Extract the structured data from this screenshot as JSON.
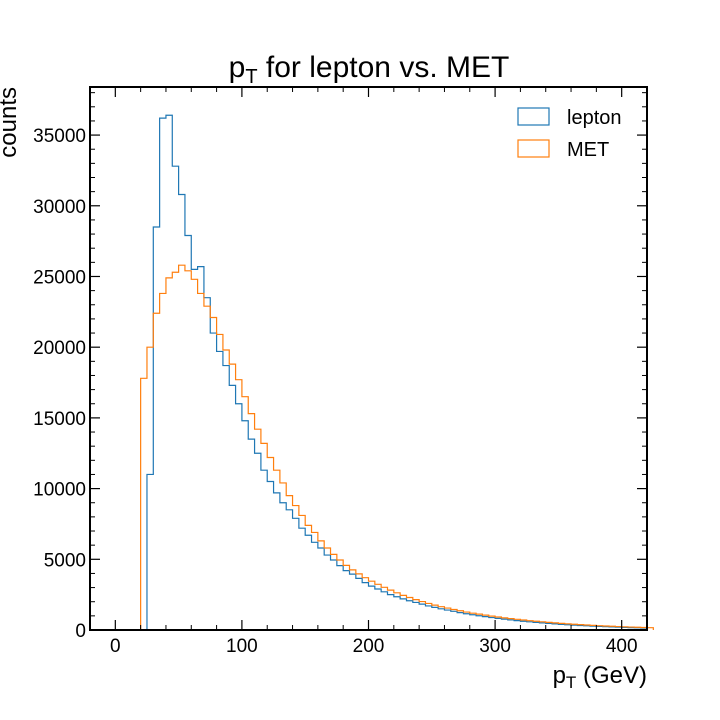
{
  "chart_data": {
    "type": "histogram",
    "title_main": "p",
    "title_sub": "T",
    "title_rest": " for lepton vs. MET",
    "xlabel_main": "p",
    "xlabel_sub": "T",
    "xlabel_rest": " (GeV)",
    "ylabel": "counts",
    "xlim": [
      -20,
      420
    ],
    "ylim": [
      0,
      38400
    ],
    "bin_start": 20,
    "bin_width": 5,
    "x_ticks": [
      0,
      100,
      200,
      300,
      400
    ],
    "x_tick_labels": [
      "0",
      "100",
      "200",
      "300",
      "400"
    ],
    "y_ticks": [
      0,
      5000,
      10000,
      15000,
      20000,
      25000,
      30000,
      35000
    ],
    "y_tick_labels": [
      "0",
      "5000",
      "10000",
      "15000",
      "20000",
      "25000",
      "30000",
      "35000"
    ],
    "legend": {
      "position": "top-right"
    },
    "series": [
      {
        "name": "lepton",
        "color": "#1f77b4",
        "values": [
          0,
          11000,
          28500,
          36200,
          36400,
          32800,
          30800,
          27900,
          25500,
          25700,
          23500,
          21000,
          19700,
          18700,
          17300,
          16000,
          14800,
          13500,
          12500,
          11300,
          10500,
          9700,
          9000,
          8500,
          7900,
          7200,
          6700,
          6200,
          5800,
          5300,
          4950,
          4550,
          4200,
          3950,
          3650,
          3350,
          3100,
          2900,
          2700,
          2500,
          2350,
          2200,
          2070,
          1950,
          1830,
          1700,
          1600,
          1500,
          1410,
          1320,
          1230,
          1150,
          1080,
          1010,
          945,
          880,
          820,
          765,
          715,
          665,
          620,
          578,
          538,
          500,
          465,
          432,
          400,
          372,
          345,
          320,
          296,
          274,
          253,
          234,
          216,
          199,
          183,
          168,
          154,
          141
        ]
      },
      {
        "name": "MET",
        "color": "#ff7f0e",
        "values": [
          17800,
          20000,
          22400,
          23800,
          24900,
          25300,
          25800,
          25400,
          24800,
          23800,
          22900,
          22100,
          20900,
          19800,
          18800,
          17700,
          16500,
          15300,
          14200,
          13200,
          12200,
          11300,
          10400,
          9500,
          8800,
          8100,
          7400,
          6900,
          6300,
          5800,
          5350,
          4950,
          4570,
          4250,
          3970,
          3700,
          3450,
          3230,
          3020,
          2820,
          2630,
          2450,
          2300,
          2150,
          2010,
          1880,
          1760,
          1650,
          1550,
          1450,
          1360,
          1270,
          1190,
          1120,
          1050,
          980,
          920,
          860,
          805,
          755,
          705,
          660,
          618,
          578,
          540,
          504,
          470,
          438,
          408,
          380,
          354,
          329,
          306,
          284,
          263,
          244,
          226,
          209,
          193,
          178,
          164
        ]
      }
    ]
  }
}
